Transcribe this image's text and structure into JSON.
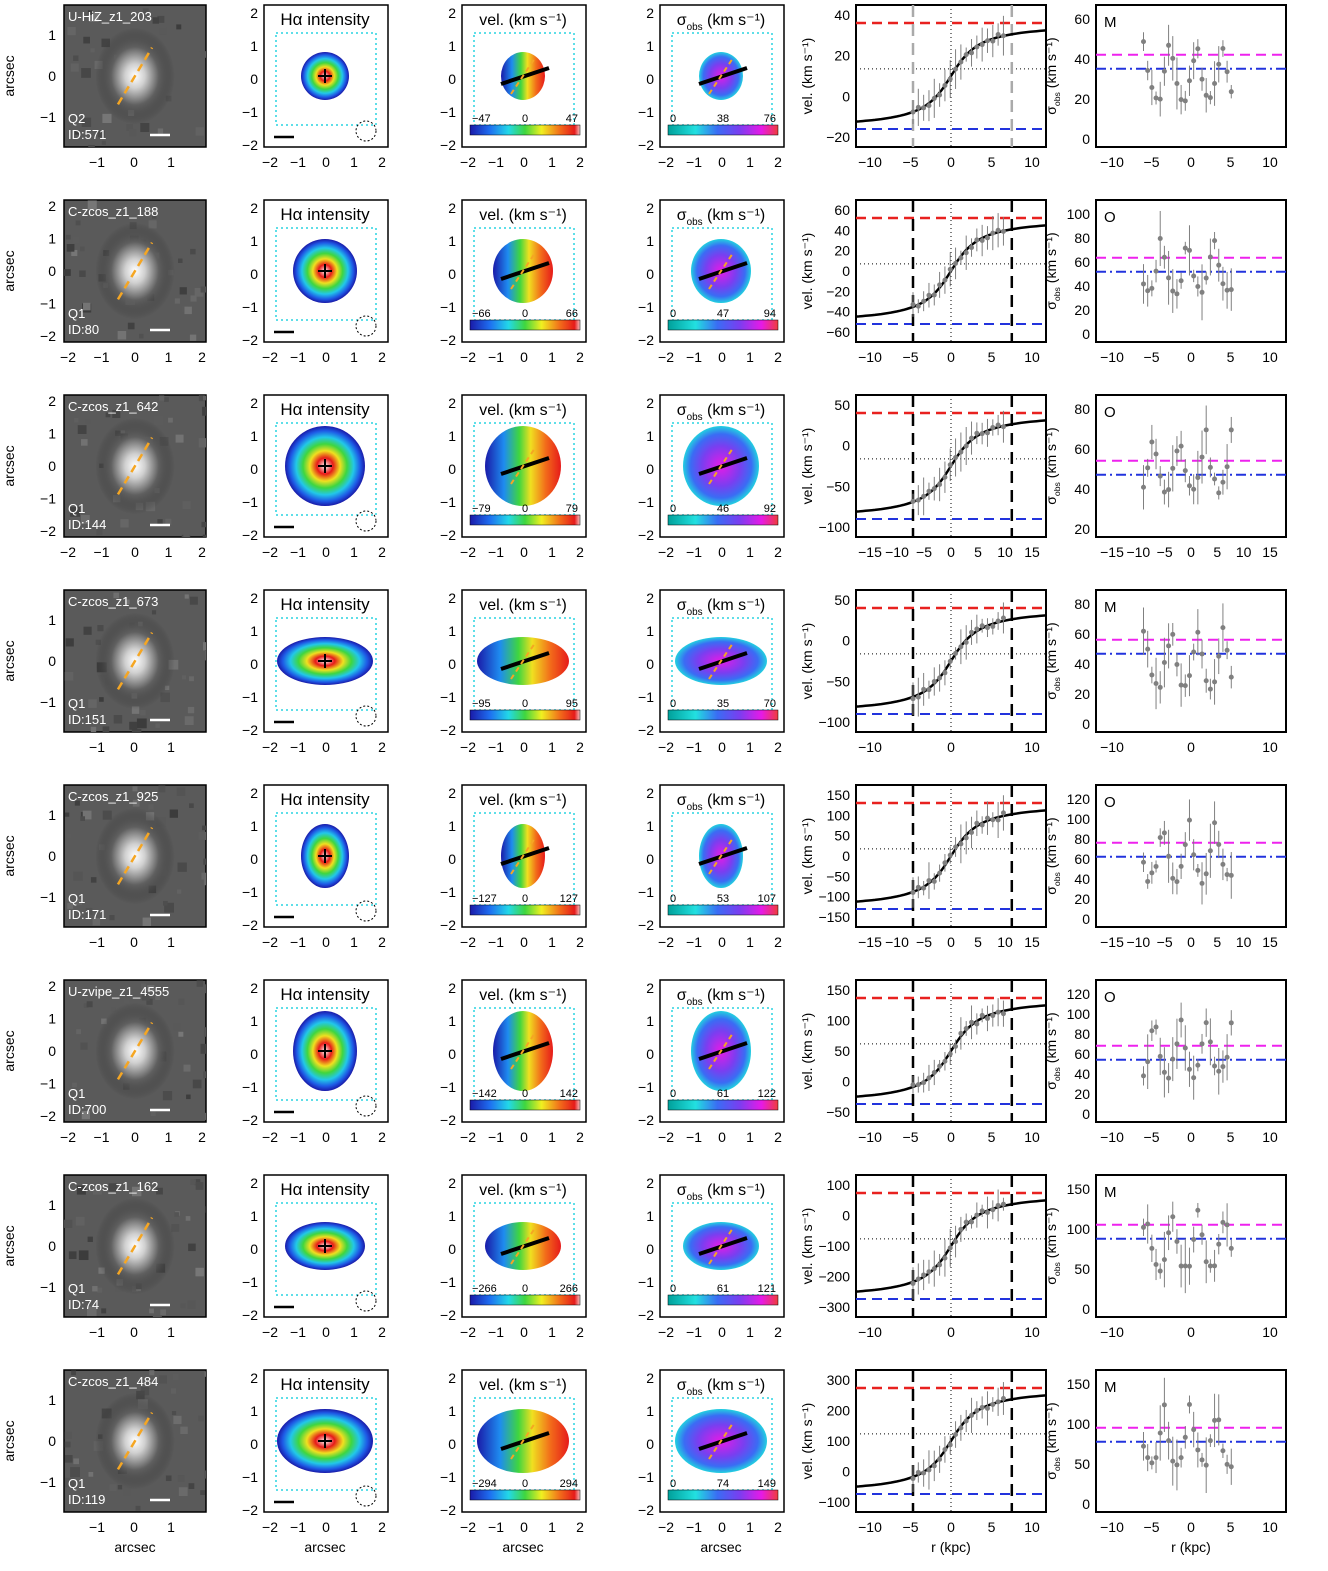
{
  "figure": {
    "axis_label_arcsec": "arcsec",
    "axis_label_r": "r (kpc)",
    "ylabel_vel": "vel. (km s⁻¹)",
    "ylabel_sigma_main": "σ",
    "ylabel_sigma_sub": "obs",
    "ylabel_sigma_units": "(km s⁻¹)",
    "title_intensity": "Hα intensity",
    "title_vel": "vel. (km s⁻¹)",
    "title_sigma_main": "σ",
    "title_sigma_sub": "obs",
    "title_sigma_units": "(km s⁻¹)",
    "arcsec_ticks_img": [
      "−1",
      "0",
      "1"
    ],
    "arcsec_ticks_img_wide": [
      "−2",
      "−1",
      "0",
      "1",
      "2"
    ],
    "arcsec_ticks_map": [
      "−2",
      "−1",
      "0",
      "1",
      "2"
    ],
    "arcsec_yticks_img": [
      "1",
      "0",
      "−1"
    ],
    "arcsec_yticks_img_wide": [
      "2",
      "1",
      "0",
      "−1",
      "−2"
    ],
    "arcsec_yticks_map": [
      "2",
      "1",
      "0",
      "−1",
      "−2"
    ]
  },
  "colors": {
    "pa_line": "#f5a623",
    "box_cyan": "#2ad4e0",
    "red_dash": "#e8211f",
    "blue_dash": "#2233dd",
    "magenta_dash": "#ee22ee",
    "points": "#808080"
  },
  "chart_data": {
    "type": "figure-grid",
    "rows": [
      {
        "name": "U-HiZ_z1_203",
        "quality": "Q2",
        "id": "ID:571",
        "img_wide": false,
        "vel_range": [
          "−47",
          "0",
          "47"
        ],
        "sig_range": [
          "0",
          "38",
          "76"
        ],
        "vel_ticks": [
          "40",
          "20",
          "0",
          "−20"
        ],
        "vel_xticks": [
          "−10",
          "−5",
          "0",
          "5",
          "10"
        ],
        "sig_ticks": [
          "60",
          "40",
          "20",
          "0"
        ],
        "sig_xticks": [
          "−10",
          "−5",
          "0",
          "5",
          "10"
        ],
        "class": "M"
      },
      {
        "name": "C-zcos_z1_188",
        "quality": "Q1",
        "id": "ID:80",
        "img_wide": true,
        "vel_range": [
          "−66",
          "0",
          "66"
        ],
        "sig_range": [
          "0",
          "47",
          "94"
        ],
        "vel_ticks": [
          "60",
          "40",
          "20",
          "0",
          "−20",
          "−40",
          "−60"
        ],
        "vel_xticks": [
          "−10",
          "−5",
          "0",
          "5",
          "10"
        ],
        "sig_ticks": [
          "100",
          "80",
          "60",
          "40",
          "20",
          "0"
        ],
        "sig_xticks": [
          "−10",
          "−5",
          "0",
          "5",
          "10"
        ],
        "class": "O"
      },
      {
        "name": "C-zcos_z1_642",
        "quality": "Q1",
        "id": "ID:144",
        "img_wide": true,
        "vel_range": [
          "−79",
          "0",
          "79"
        ],
        "sig_range": [
          "0",
          "46",
          "92"
        ],
        "vel_ticks": [
          "50",
          "0",
          "−50",
          "−100"
        ],
        "vel_xticks": [
          "−15",
          "−10",
          "−5",
          "0",
          "5",
          "10",
          "15"
        ],
        "sig_ticks": [
          "80",
          "60",
          "40",
          "20"
        ],
        "sig_xticks": [
          "−15",
          "−10",
          "−5",
          "0",
          "5",
          "10",
          "15"
        ],
        "class": "O"
      },
      {
        "name": "C-zcos_z1_673",
        "quality": "Q1",
        "id": "ID:151",
        "img_wide": false,
        "vel_range": [
          "−95",
          "0",
          "95"
        ],
        "sig_range": [
          "0",
          "35",
          "70"
        ],
        "vel_ticks": [
          "50",
          "0",
          "−50",
          "−100"
        ],
        "vel_xticks": [
          "−10",
          "0",
          "10"
        ],
        "sig_ticks": [
          "80",
          "60",
          "40",
          "20",
          "0"
        ],
        "sig_xticks": [
          "−10",
          "0",
          "10"
        ],
        "class": "M"
      },
      {
        "name": "C-zcos_z1_925",
        "quality": "Q1",
        "id": "ID:171",
        "img_wide": false,
        "vel_range": [
          "−127",
          "0",
          "127"
        ],
        "sig_range": [
          "0",
          "53",
          "107"
        ],
        "vel_ticks": [
          "150",
          "100",
          "50",
          "0",
          "−50",
          "−100",
          "−150"
        ],
        "vel_xticks": [
          "−15",
          "−10",
          "−5",
          "0",
          "5",
          "10",
          "15"
        ],
        "sig_ticks": [
          "120",
          "100",
          "80",
          "60",
          "40",
          "20",
          "0"
        ],
        "sig_xticks": [
          "−15",
          "−10",
          "−5",
          "0",
          "5",
          "10",
          "15"
        ],
        "class": "O"
      },
      {
        "name": "U-zvipe_z1_4555",
        "quality": "Q1",
        "id": "ID:700",
        "img_wide": true,
        "vel_range": [
          "−142",
          "0",
          "142"
        ],
        "sig_range": [
          "0",
          "61",
          "122"
        ],
        "vel_ticks": [
          "150",
          "100",
          "50",
          "0",
          "−50"
        ],
        "vel_xticks": [
          "−10",
          "−5",
          "0",
          "5",
          "10"
        ],
        "sig_ticks": [
          "120",
          "100",
          "80",
          "60",
          "40",
          "20",
          "0"
        ],
        "sig_xticks": [
          "−10",
          "−5",
          "0",
          "5",
          "10"
        ],
        "class": "O"
      },
      {
        "name": "C-zcos_z1_162",
        "quality": "Q1",
        "id": "ID:74",
        "img_wide": false,
        "vel_range": [
          "−266",
          "0",
          "266"
        ],
        "sig_range": [
          "0",
          "61",
          "121"
        ],
        "vel_ticks": [
          "100",
          "0",
          "−100",
          "−200",
          "−300"
        ],
        "vel_xticks": [
          "−10",
          "0",
          "10"
        ],
        "sig_ticks": [
          "150",
          "100",
          "50",
          "0"
        ],
        "sig_xticks": [
          "−10",
          "0",
          "10"
        ],
        "class": "M"
      },
      {
        "name": "C-zcos_z1_484",
        "quality": "Q1",
        "id": "ID:119",
        "img_wide": false,
        "vel_range": [
          "−294",
          "0",
          "294"
        ],
        "sig_range": [
          "0",
          "74",
          "149"
        ],
        "vel_ticks": [
          "300",
          "200",
          "100",
          "0",
          "−100"
        ],
        "vel_xticks": [
          "−10",
          "−5",
          "0",
          "5",
          "10"
        ],
        "sig_ticks": [
          "150",
          "100",
          "50",
          "0"
        ],
        "sig_xticks": [
          "−10",
          "−5",
          "0",
          "5",
          "10"
        ],
        "class": "M"
      }
    ]
  }
}
